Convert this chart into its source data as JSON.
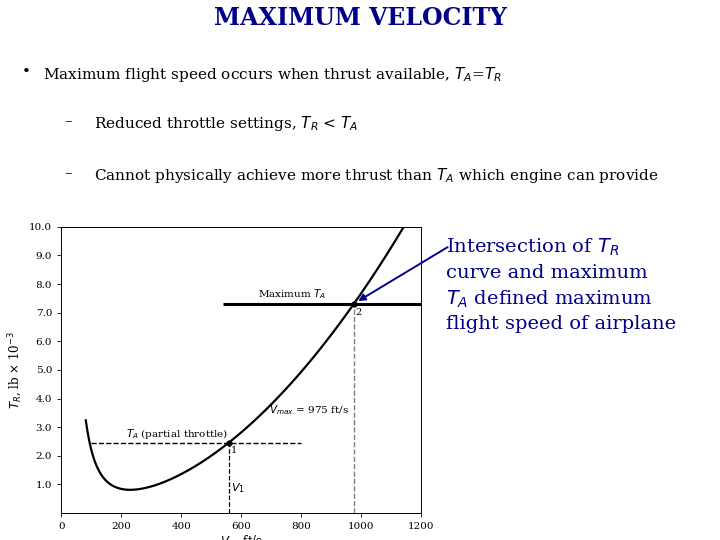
{
  "title": "MAXIMUM VELOCITY",
  "title_color": "#00008B",
  "title_fontsize": 17,
  "background_color": "#ffffff",
  "curve_color": "#000000",
  "xlim": [
    0,
    1200
  ],
  "ylim": [
    0,
    10.0
  ],
  "yticks": [
    1.0,
    2.0,
    3.0,
    4.0,
    5.0,
    6.0,
    7.0,
    8.0,
    9.0,
    10.0
  ],
  "xticks": [
    0,
    200,
    400,
    600,
    800,
    1000,
    1200
  ],
  "max_TA_line_y": 7.3,
  "max_TA_x_start": 540,
  "max_TA_x_end": 1200,
  "partial_TA_line_y": 2.45,
  "partial_TA_x_start": 100,
  "partial_TA_x_end": 800,
  "vmax": 975,
  "v1": 560,
  "annotation_color": "#00008B",
  "annotation_fontsize": 14,
  "arrow_color": "#00008B"
}
